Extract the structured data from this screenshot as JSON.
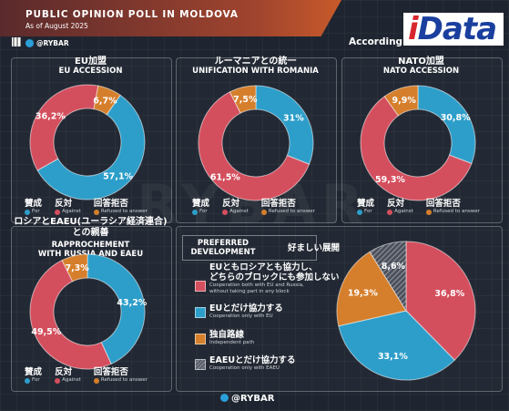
{
  "header": {
    "title": "PUBLIC OPINION POLL IN MOLDOVA",
    "subtitle": "As of August 2025",
    "brand": "@RYBAR",
    "according_to": "According to:",
    "source_logo_i": "i",
    "source_logo_rest": "Data"
  },
  "watermark": "RYBAR",
  "footer": {
    "brand": "@RYBAR"
  },
  "colors": {
    "blue": "#2d9ec9",
    "red": "#d44f5e",
    "orange": "#d57f2c",
    "gray": "#5a5f6a"
  },
  "chart_data": [
    {
      "type": "pie",
      "variant": "donut",
      "title_jp": "EU加盟",
      "title": "EU ACCESSION",
      "categories": [
        "For",
        "Against",
        "Refused to answer"
      ],
      "values": [
        57.1,
        36.2,
        6.7
      ],
      "labels": [
        "57,1%",
        "36,2%",
        "6,7%"
      ],
      "colors": [
        "#2d9ec9",
        "#d44f5e",
        "#d57f2c"
      ],
      "legend": [
        {
          "jp": "賛成",
          "en": "For"
        },
        {
          "jp": "反対",
          "en": "Against"
        },
        {
          "jp": "回答拒否",
          "en": "Refused to answer"
        }
      ]
    },
    {
      "type": "pie",
      "variant": "donut",
      "title_jp": "ルーマニアとの統一",
      "title": "UNIFICATION WITH ROMANIA",
      "categories": [
        "For",
        "Against",
        "Refused to answer"
      ],
      "values": [
        31,
        61.5,
        7.5
      ],
      "labels": [
        "31%",
        "61,5%",
        "7,5%"
      ],
      "colors": [
        "#2d9ec9",
        "#d44f5e",
        "#d57f2c"
      ],
      "legend": [
        {
          "jp": "賛成",
          "en": "For"
        },
        {
          "jp": "反対",
          "en": "Against"
        },
        {
          "jp": "回答拒否",
          "en": "Refused to answer"
        }
      ]
    },
    {
      "type": "pie",
      "variant": "donut",
      "title_jp": "NATO加盟",
      "title": "NATO ACCESSION",
      "categories": [
        "For",
        "Against",
        "Refused to answer"
      ],
      "values": [
        30.8,
        59.3,
        9.9
      ],
      "labels": [
        "30,8%",
        "59,3%",
        "9,9%"
      ],
      "colors": [
        "#2d9ec9",
        "#d44f5e",
        "#d57f2c"
      ],
      "legend": [
        {
          "jp": "賛成",
          "en": "For"
        },
        {
          "jp": "反対",
          "en": "Against"
        },
        {
          "jp": "回答拒否",
          "en": "Refused to answer"
        }
      ]
    },
    {
      "type": "pie",
      "variant": "donut",
      "title_jp": "ロシアとEAEU(ユーラシア経済連合)との親善",
      "title_jp_line1": "ロシアとEAEU(ユーラシア経済連合)",
      "title_jp_line2": "との親善",
      "title": "RAPPROCHEMENT WITH RUSSIA AND EAEU",
      "title_line1": "RAPPROCHEMENT",
      "title_line2": "WITH RUSSIA AND EAEU",
      "categories": [
        "For",
        "Against",
        "Refused to answer"
      ],
      "values": [
        43.2,
        49.5,
        7.3
      ],
      "labels": [
        "43,2%",
        "49,5%",
        "7,3%"
      ],
      "colors": [
        "#2d9ec9",
        "#d44f5e",
        "#d57f2c"
      ],
      "legend": [
        {
          "jp": "賛成",
          "en": "For"
        },
        {
          "jp": "反対",
          "en": "Against"
        },
        {
          "jp": "回答拒否",
          "en": "Refused to answer"
        }
      ]
    },
    {
      "type": "pie",
      "title": "PREFERRED DEVELOPMENT",
      "title_line1": "PREFERRED",
      "title_line2": "DEVELOPMENT",
      "title_jp": "好ましい展開",
      "categories": [
        "Cooperation both with EU and Russia, without taking part in any block",
        "Cooperation only with EU",
        "Independent path",
        "Cooperation only with EAEU"
      ],
      "values": [
        36.8,
        33.1,
        19.3,
        8.6
      ],
      "labels": [
        "36,8%",
        "33,1%",
        "19,3%",
        "8,6%"
      ],
      "colors": [
        "#d44f5e",
        "#2d9ec9",
        "#d57f2c",
        "#5a5f6a"
      ],
      "legend": [
        {
          "jp_line1": "EUともロシアとも協力し、",
          "jp_line2": "どちらのブロックにも参加しない",
          "en_line1": "Cooperation both with EU and Russia,",
          "en_line2": "without taking part in any block"
        },
        {
          "jp_line1": "EUとだけ協力する",
          "en_line1": "Cooperation only with EU"
        },
        {
          "jp_line1": "独自路線",
          "en_line1": "Independent path"
        },
        {
          "jp_line1": "EAEUとだけ協力する",
          "en_line1": "Cooperation only with EAEU"
        }
      ]
    }
  ]
}
